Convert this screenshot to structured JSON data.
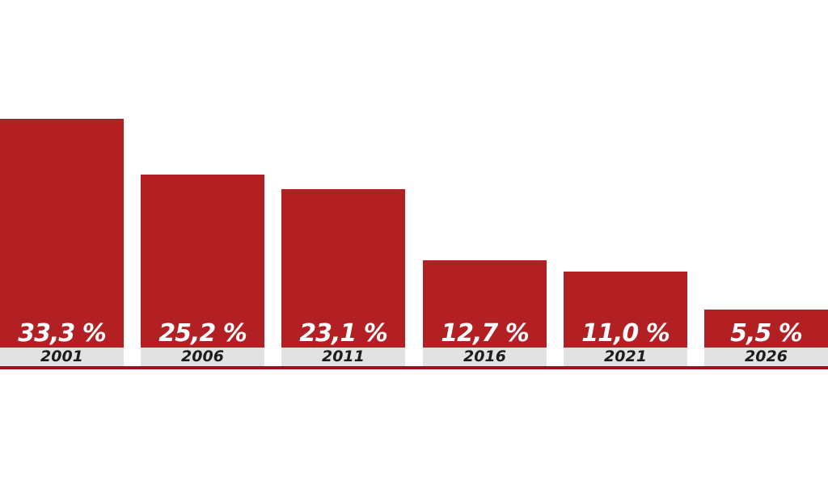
{
  "chart_data": {
    "type": "bar",
    "categories": [
      "2001",
      "2006",
      "2011",
      "2016",
      "2021",
      "2026"
    ],
    "values": [
      33.3,
      25.2,
      23.1,
      12.7,
      11.0,
      5.5
    ],
    "value_labels": [
      "33,3 %",
      "25,2 %",
      "23,1 %",
      "12,7 %",
      "11,0 %",
      "5,5 %"
    ],
    "title": "",
    "xlabel": "",
    "ylabel": "",
    "ylim": [
      0,
      35
    ],
    "grid": false,
    "legend": null,
    "axes_hidden": true,
    "colors": {
      "bar": "#b22024",
      "baseline": "#8e1a1d",
      "category_band": "#e2e2e2",
      "value_label_text": "#ffffff",
      "category_label_text": "#1d1c1a",
      "background": "#ffffff"
    }
  }
}
